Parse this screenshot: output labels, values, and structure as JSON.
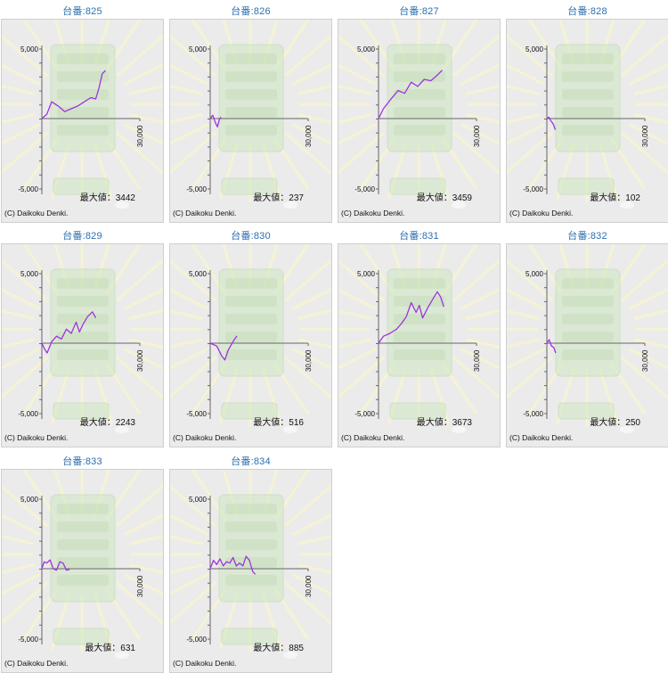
{
  "chart_data": [
    {
      "type": "line",
      "title": "台番:825",
      "tick_pos": "5,000",
      "tick_neg": "-5,000",
      "xtick": "30,000",
      "ylim": [
        -5000,
        5000
      ],
      "xlim": [
        0,
        30000
      ],
      "max_label": "最大値：3442",
      "copyright": "(C) Daikoku Denki.",
      "series": [
        {
          "values": [
            [
              0,
              0
            ],
            [
              1500,
              300
            ],
            [
              3000,
              1200
            ],
            [
              5000,
              900
            ],
            [
              7000,
              500
            ],
            [
              9000,
              700
            ],
            [
              11000,
              900
            ],
            [
              13000,
              1200
            ],
            [
              15000,
              1500
            ],
            [
              16500,
              1400
            ],
            [
              17500,
              2200
            ],
            [
              18500,
              3200
            ],
            [
              19500,
              3442
            ]
          ]
        }
      ]
    },
    {
      "type": "line",
      "title": "台番:826",
      "tick_pos": "5,000",
      "tick_neg": "-5,000",
      "xtick": "30,000",
      "ylim": [
        -5000,
        5000
      ],
      "xlim": [
        0,
        30000
      ],
      "max_label": "最大値：237",
      "copyright": "(C) Daikoku Denki.",
      "series": [
        {
          "values": [
            [
              0,
              0
            ],
            [
              800,
              237
            ],
            [
              1600,
              -300
            ],
            [
              2200,
              -600
            ],
            [
              2800,
              -50
            ],
            [
              3300,
              100
            ]
          ]
        }
      ]
    },
    {
      "type": "line",
      "title": "台番:827",
      "tick_pos": "5,000",
      "tick_neg": "-5,000",
      "xtick": "30,000",
      "ylim": [
        -5000,
        5000
      ],
      "xlim": [
        0,
        30000
      ],
      "max_label": "最大値：3459",
      "copyright": "(C) Daikoku Denki.",
      "series": [
        {
          "values": [
            [
              0,
              0
            ],
            [
              1500,
              700
            ],
            [
              3500,
              1300
            ],
            [
              6000,
              2000
            ],
            [
              8000,
              1800
            ],
            [
              10000,
              2600
            ],
            [
              12000,
              2300
            ],
            [
              14000,
              2800
            ],
            [
              16000,
              2700
            ],
            [
              18000,
              3100
            ],
            [
              19500,
              3459
            ]
          ]
        }
      ]
    },
    {
      "type": "line",
      "title": "台番:828",
      "tick_pos": "5,000",
      "tick_neg": "-5,000",
      "xtick": "30,000",
      "ylim": [
        -5000,
        5000
      ],
      "xlim": [
        0,
        30000
      ],
      "max_label": "最大値：102",
      "copyright": "(C) Daikoku Denki.",
      "series": [
        {
          "values": [
            [
              0,
              0
            ],
            [
              600,
              102
            ],
            [
              1200,
              -150
            ],
            [
              2000,
              -400
            ],
            [
              2600,
              -800
            ]
          ]
        }
      ]
    },
    {
      "type": "line",
      "title": "台番:829",
      "tick_pos": "5,000",
      "tick_neg": "-5,000",
      "xtick": "30,000",
      "ylim": [
        -5000,
        5000
      ],
      "xlim": [
        0,
        30000
      ],
      "max_label": "最大値：2243",
      "copyright": "(C) Daikoku Denki.",
      "series": [
        {
          "values": [
            [
              0,
              0
            ],
            [
              800,
              -400
            ],
            [
              1600,
              -700
            ],
            [
              3000,
              100
            ],
            [
              4500,
              500
            ],
            [
              6000,
              300
            ],
            [
              7500,
              1000
            ],
            [
              9000,
              700
            ],
            [
              10500,
              1500
            ],
            [
              11500,
              800
            ],
            [
              12500,
              1300
            ],
            [
              14000,
              1900
            ],
            [
              15500,
              2243
            ],
            [
              16500,
              1800
            ]
          ]
        }
      ]
    },
    {
      "type": "line",
      "title": "台番:830",
      "tick_pos": "5,000",
      "tick_neg": "-5,000",
      "xtick": "30,000",
      "ylim": [
        -5000,
        5000
      ],
      "xlim": [
        0,
        30000
      ],
      "max_label": "最大値：516",
      "copyright": "(C) Daikoku Denki.",
      "series": [
        {
          "values": [
            [
              0,
              0
            ],
            [
              2000,
              -200
            ],
            [
              3500,
              -900
            ],
            [
              4500,
              -1200
            ],
            [
              5500,
              -500
            ],
            [
              6500,
              -100
            ],
            [
              7500,
              300
            ],
            [
              8200,
              516
            ]
          ]
        }
      ]
    },
    {
      "type": "line",
      "title": "台番:831",
      "tick_pos": "5,000",
      "tick_neg": "-5,000",
      "xtick": "30,000",
      "ylim": [
        -5000,
        5000
      ],
      "xlim": [
        0,
        30000
      ],
      "max_label": "最大値：3673",
      "copyright": "(C) Daikoku Denki.",
      "series": [
        {
          "values": [
            [
              0,
              0
            ],
            [
              1500,
              500
            ],
            [
              3500,
              700
            ],
            [
              5500,
              1000
            ],
            [
              7000,
              1400
            ],
            [
              8500,
              1900
            ],
            [
              10000,
              2900
            ],
            [
              11500,
              2200
            ],
            [
              12500,
              2700
            ],
            [
              13500,
              1800
            ],
            [
              15000,
              2500
            ],
            [
              16500,
              3100
            ],
            [
              18000,
              3673
            ],
            [
              19000,
              3300
            ],
            [
              20000,
              2600
            ]
          ]
        }
      ]
    },
    {
      "type": "line",
      "title": "台番:832",
      "tick_pos": "5,000",
      "tick_neg": "-5,000",
      "xtick": "30,000",
      "ylim": [
        -5000,
        5000
      ],
      "xlim": [
        0,
        30000
      ],
      "max_label": "最大値：250",
      "copyright": "(C) Daikoku Denki.",
      "series": [
        {
          "values": [
            [
              0,
              0
            ],
            [
              700,
              250
            ],
            [
              1400,
              -200
            ],
            [
              2100,
              -300
            ],
            [
              2700,
              -700
            ]
          ]
        }
      ]
    },
    {
      "type": "line",
      "title": "台番:833",
      "tick_pos": "5,000",
      "tick_neg": "-5,000",
      "xtick": "30,000",
      "ylim": [
        -5000,
        5000
      ],
      "xlim": [
        0,
        30000
      ],
      "max_label": "最大値：631",
      "copyright": "(C) Daikoku Denki.",
      "series": [
        {
          "values": [
            [
              0,
              0
            ],
            [
              700,
              500
            ],
            [
              1500,
              400
            ],
            [
              2500,
              631
            ],
            [
              3500,
              0
            ],
            [
              4500,
              -100
            ],
            [
              5500,
              500
            ],
            [
              6500,
              400
            ],
            [
              7500,
              -100
            ],
            [
              8500,
              -50
            ]
          ]
        }
      ]
    },
    {
      "type": "line",
      "title": "台番:834",
      "tick_pos": "5,000",
      "tick_neg": "-5,000",
      "xtick": "30,000",
      "ylim": [
        -5000,
        5000
      ],
      "xlim": [
        0,
        30000
      ],
      "max_label": "最大値：885",
      "copyright": "(C) Daikoku Denki.",
      "series": [
        {
          "values": [
            [
              0,
              0
            ],
            [
              1000,
              600
            ],
            [
              2000,
              300
            ],
            [
              3000,
              700
            ],
            [
              4000,
              200
            ],
            [
              5000,
              500
            ],
            [
              6000,
              400
            ],
            [
              7000,
              800
            ],
            [
              8000,
              200
            ],
            [
              9000,
              400
            ],
            [
              10000,
              200
            ],
            [
              11000,
              885
            ],
            [
              12000,
              600
            ],
            [
              13000,
              -200
            ],
            [
              13800,
              -400
            ]
          ]
        }
      ]
    }
  ],
  "colors": {
    "line": "#a032e0",
    "axis": "#666666",
    "title": "#2a6fb0",
    "panel": "#ebebeb"
  }
}
